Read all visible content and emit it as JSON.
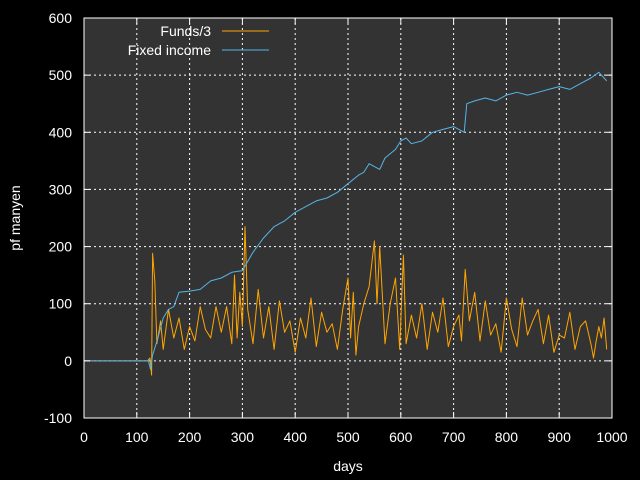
{
  "chart_data": {
    "type": "line",
    "title": "",
    "xlabel": "days",
    "ylabel": "pf manyen",
    "xlim": [
      0,
      1000
    ],
    "ylim": [
      -100,
      600
    ],
    "xticks": [
      0,
      100,
      200,
      300,
      400,
      500,
      600,
      700,
      800,
      900,
      1000
    ],
    "yticks": [
      -100,
      0,
      100,
      200,
      300,
      400,
      500,
      600
    ],
    "grid": true,
    "background": "#333333",
    "axis_color": "#ffffff",
    "legend_position": "top-left",
    "series": [
      {
        "name": "Funds/3",
        "color": "#ffa500",
        "points": [
          [
            0,
            0
          ],
          [
            120,
            0
          ],
          [
            125,
            5
          ],
          [
            128,
            -25
          ],
          [
            130,
            188
          ],
          [
            134,
            140
          ],
          [
            138,
            30
          ],
          [
            145,
            70
          ],
          [
            150,
            20
          ],
          [
            160,
            90
          ],
          [
            170,
            40
          ],
          [
            180,
            75
          ],
          [
            190,
            20
          ],
          [
            200,
            60
          ],
          [
            210,
            35
          ],
          [
            220,
            95
          ],
          [
            230,
            55
          ],
          [
            240,
            40
          ],
          [
            250,
            95
          ],
          [
            260,
            50
          ],
          [
            270,
            95
          ],
          [
            280,
            30
          ],
          [
            285,
            150
          ],
          [
            290,
            40
          ],
          [
            295,
            120
          ],
          [
            300,
            60
          ],
          [
            305,
            235
          ],
          [
            310,
            90
          ],
          [
            320,
            30
          ],
          [
            330,
            125
          ],
          [
            340,
            40
          ],
          [
            350,
            95
          ],
          [
            360,
            20
          ],
          [
            370,
            105
          ],
          [
            380,
            50
          ],
          [
            390,
            70
          ],
          [
            400,
            15
          ],
          [
            410,
            75
          ],
          [
            420,
            40
          ],
          [
            430,
            110
          ],
          [
            440,
            25
          ],
          [
            450,
            85
          ],
          [
            460,
            50
          ],
          [
            470,
            65
          ],
          [
            480,
            20
          ],
          [
            490,
            90
          ],
          [
            500,
            145
          ],
          [
            505,
            40
          ],
          [
            510,
            120
          ],
          [
            515,
            10
          ],
          [
            520,
            60
          ],
          [
            530,
            100
          ],
          [
            540,
            130
          ],
          [
            550,
            210
          ],
          [
            555,
            100
          ],
          [
            560,
            200
          ],
          [
            570,
            30
          ],
          [
            580,
            100
          ],
          [
            590,
            145
          ],
          [
            598,
            20
          ],
          [
            605,
            185
          ],
          [
            610,
            30
          ],
          [
            620,
            80
          ],
          [
            630,
            40
          ],
          [
            640,
            100
          ],
          [
            650,
            20
          ],
          [
            660,
            85
          ],
          [
            670,
            50
          ],
          [
            680,
            110
          ],
          [
            690,
            25
          ],
          [
            700,
            60
          ],
          [
            710,
            80
          ],
          [
            715,
            35
          ],
          [
            722,
            160
          ],
          [
            730,
            70
          ],
          [
            740,
            120
          ],
          [
            750,
            35
          ],
          [
            760,
            105
          ],
          [
            770,
            45
          ],
          [
            780,
            65
          ],
          [
            790,
            15
          ],
          [
            800,
            110
          ],
          [
            810,
            55
          ],
          [
            820,
            25
          ],
          [
            830,
            110
          ],
          [
            840,
            45
          ],
          [
            850,
            70
          ],
          [
            860,
            90
          ],
          [
            870,
            30
          ],
          [
            880,
            80
          ],
          [
            890,
            15
          ],
          [
            900,
            45
          ],
          [
            910,
            40
          ],
          [
            920,
            85
          ],
          [
            930,
            20
          ],
          [
            940,
            60
          ],
          [
            950,
            70
          ],
          [
            960,
            30
          ],
          [
            965,
            5
          ],
          [
            970,
            35
          ],
          [
            975,
            60
          ],
          [
            980,
            40
          ],
          [
            985,
            75
          ],
          [
            990,
            20
          ]
        ]
      },
      {
        "name": "Fixed income",
        "color": "#56b4e9",
        "points": [
          [
            0,
            0
          ],
          [
            122,
            0
          ],
          [
            126,
            -15
          ],
          [
            130,
            10
          ],
          [
            140,
            40
          ],
          [
            150,
            75
          ],
          [
            160,
            90
          ],
          [
            170,
            95
          ],
          [
            180,
            120
          ],
          [
            200,
            122
          ],
          [
            220,
            125
          ],
          [
            240,
            140
          ],
          [
            260,
            145
          ],
          [
            280,
            155
          ],
          [
            300,
            158
          ],
          [
            320,
            190
          ],
          [
            340,
            215
          ],
          [
            360,
            235
          ],
          [
            380,
            245
          ],
          [
            400,
            260
          ],
          [
            420,
            270
          ],
          [
            440,
            280
          ],
          [
            460,
            285
          ],
          [
            480,
            295
          ],
          [
            500,
            310
          ],
          [
            520,
            325
          ],
          [
            530,
            330
          ],
          [
            540,
            345
          ],
          [
            560,
            335
          ],
          [
            570,
            355
          ],
          [
            590,
            370
          ],
          [
            600,
            385
          ],
          [
            610,
            390
          ],
          [
            620,
            380
          ],
          [
            640,
            385
          ],
          [
            660,
            400
          ],
          [
            680,
            405
          ],
          [
            700,
            410
          ],
          [
            720,
            400
          ],
          [
            725,
            450
          ],
          [
            740,
            455
          ],
          [
            760,
            460
          ],
          [
            780,
            455
          ],
          [
            800,
            465
          ],
          [
            820,
            470
          ],
          [
            840,
            465
          ],
          [
            860,
            470
          ],
          [
            880,
            475
          ],
          [
            900,
            480
          ],
          [
            920,
            475
          ],
          [
            940,
            485
          ],
          [
            960,
            495
          ],
          [
            975,
            505
          ],
          [
            985,
            495
          ],
          [
            990,
            490
          ]
        ]
      }
    ]
  }
}
